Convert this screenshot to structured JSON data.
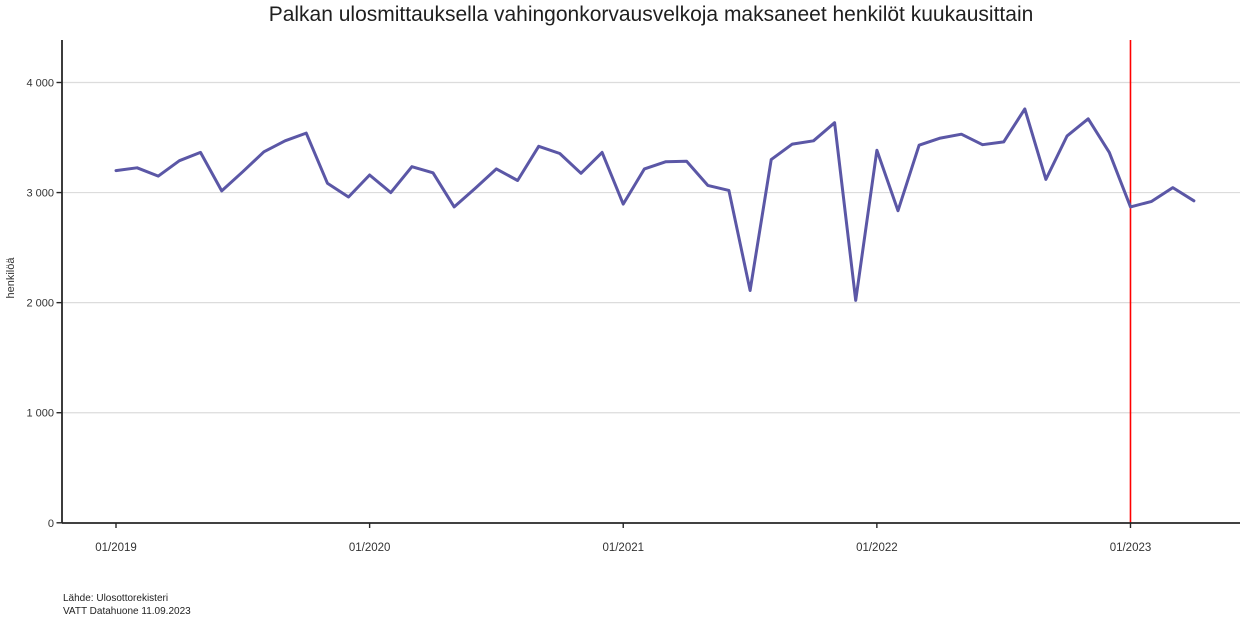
{
  "title": "Palkan ulosmittauksella vahingonkorvausvelkoja maksaneet henkilöt kuukausittain",
  "footer": {
    "line1": "Lähde: Ulosottorekisteri",
    "line2": "VATT Datahuone 11.09.2023"
  },
  "colors": {
    "series": "#5b57a6",
    "vline": "#ff0000",
    "grid": "#dcdcdc",
    "axis": "#262626",
    "tick_text": "#333333",
    "title_text": "#1f1f1f"
  },
  "chart_data": {
    "type": "line",
    "title": "Palkan ulosmittauksella vahingonkorvausvelkoja maksaneet henkilöt kuukausittain",
    "xlabel": "",
    "ylabel": "henkilöä",
    "ylim": [
      0,
      4390
    ],
    "grid": "horizontal",
    "legend": "none",
    "x": [
      "01/2019",
      "02/2019",
      "03/2019",
      "04/2019",
      "05/2019",
      "06/2019",
      "07/2019",
      "08/2019",
      "09/2019",
      "10/2019",
      "11/2019",
      "12/2019",
      "01/2020",
      "02/2020",
      "03/2020",
      "04/2020",
      "05/2020",
      "06/2020",
      "07/2020",
      "08/2020",
      "09/2020",
      "10/2020",
      "11/2020",
      "12/2020",
      "01/2021",
      "02/2021",
      "03/2021",
      "04/2021",
      "05/2021",
      "06/2021",
      "07/2021",
      "08/2021",
      "09/2021",
      "10/2021",
      "11/2021",
      "12/2021",
      "01/2022",
      "02/2022",
      "03/2022",
      "04/2022",
      "05/2022",
      "06/2022",
      "07/2022",
      "08/2022",
      "09/2022",
      "10/2022",
      "11/2022",
      "12/2022",
      "01/2023",
      "02/2023",
      "03/2023",
      "04/2023"
    ],
    "values": [
      3200,
      3225,
      3150,
      3290,
      3365,
      3015,
      3190,
      3370,
      3470,
      3540,
      3085,
      2960,
      3160,
      3000,
      3235,
      3180,
      2870,
      3040,
      3215,
      3110,
      3420,
      3355,
      3175,
      3365,
      2895,
      3215,
      3280,
      3285,
      3065,
      3020,
      2110,
      3300,
      3440,
      3470,
      3635,
      2020,
      3385,
      2835,
      3430,
      3495,
      3530,
      3435,
      3460,
      3760,
      3120,
      3515,
      3670,
      3365,
      2870,
      2920,
      3045,
      2925
    ],
    "x_tick_labels": [
      "01/2019",
      "01/2020",
      "01/2021",
      "01/2022",
      "01/2023"
    ],
    "x_tick_positions": [
      0,
      12,
      24,
      36,
      48
    ],
    "y_tick_labels": [
      "0",
      "1 000",
      "2 000",
      "3 000",
      "4 000"
    ],
    "y_tick_values": [
      0,
      1000,
      2000,
      3000,
      4000
    ],
    "vline": {
      "x": "01/2023",
      "month_index": 48
    }
  }
}
